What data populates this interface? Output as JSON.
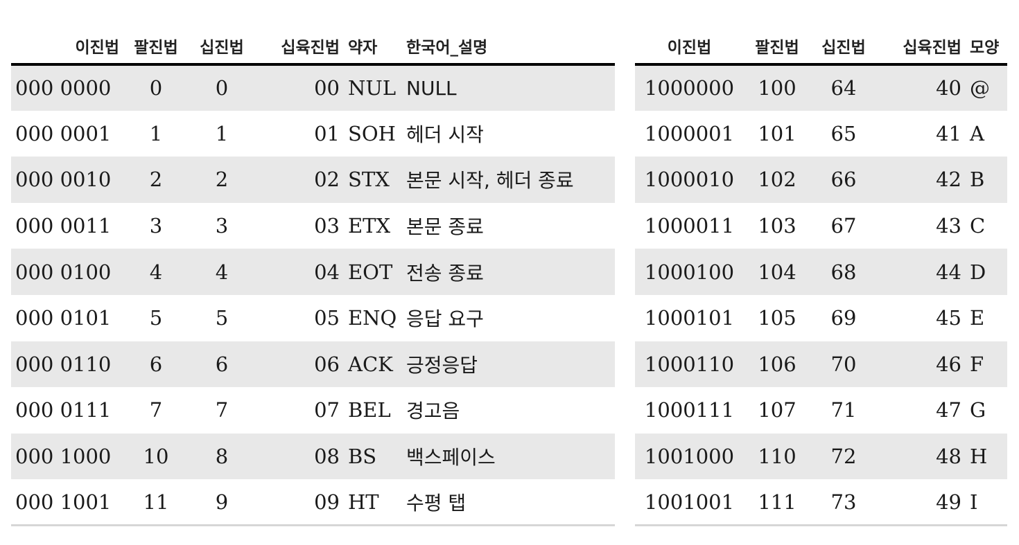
{
  "left_table": {
    "headers": [
      "이진법",
      "팔진법",
      "십진법",
      "십육진법",
      "약자",
      "한국어_설명"
    ],
    "rows": [
      [
        "000 0000",
        "0",
        "0",
        "00",
        "NUL",
        "NULL"
      ],
      [
        "000 0001",
        "1",
        "1",
        "01",
        "SOH",
        "헤더 시작"
      ],
      [
        "000 0010",
        "2",
        "2",
        "02",
        "STX",
        "본문 시작, 헤더 종료"
      ],
      [
        "000 0011",
        "3",
        "3",
        "03",
        "ETX",
        "본문 종료"
      ],
      [
        "000 0100",
        "4",
        "4",
        "04",
        "EOT",
        "전송 종료"
      ],
      [
        "000 0101",
        "5",
        "5",
        "05",
        "ENQ",
        "응답 요구"
      ],
      [
        "000 0110",
        "6",
        "6",
        "06",
        "ACK",
        "긍정응답"
      ],
      [
        "000 0111",
        "7",
        "7",
        "07",
        "BEL",
        "경고음"
      ],
      [
        "000 1000",
        "10",
        "8",
        "08",
        "BS",
        "백스페이스"
      ],
      [
        "000 1001",
        "11",
        "9",
        "09",
        "HT",
        "수평 탭"
      ]
    ]
  },
  "right_table": {
    "headers": [
      "이진법",
      "팔진법",
      "십진법",
      "십육진법",
      "모양"
    ],
    "rows": [
      [
        "1000000",
        "100",
        "64",
        "40",
        "@"
      ],
      [
        "1000001",
        "101",
        "65",
        "41",
        "A"
      ],
      [
        "1000010",
        "102",
        "66",
        "42",
        "B"
      ],
      [
        "1000011",
        "103",
        "67",
        "43",
        "C"
      ],
      [
        "1000100",
        "104",
        "68",
        "44",
        "D"
      ],
      [
        "1000101",
        "105",
        "69",
        "45",
        "E"
      ],
      [
        "1000110",
        "106",
        "70",
        "46",
        "F"
      ],
      [
        "1000111",
        "107",
        "71",
        "47",
        "G"
      ],
      [
        "1001000",
        "110",
        "72",
        "48",
        "H"
      ],
      [
        "1001001",
        "111",
        "73",
        "49",
        "I"
      ]
    ]
  },
  "colors": {
    "stripe": "#e8e8e8",
    "header_rule": "#000000",
    "bottom_rule": "#d6d6d6"
  }
}
